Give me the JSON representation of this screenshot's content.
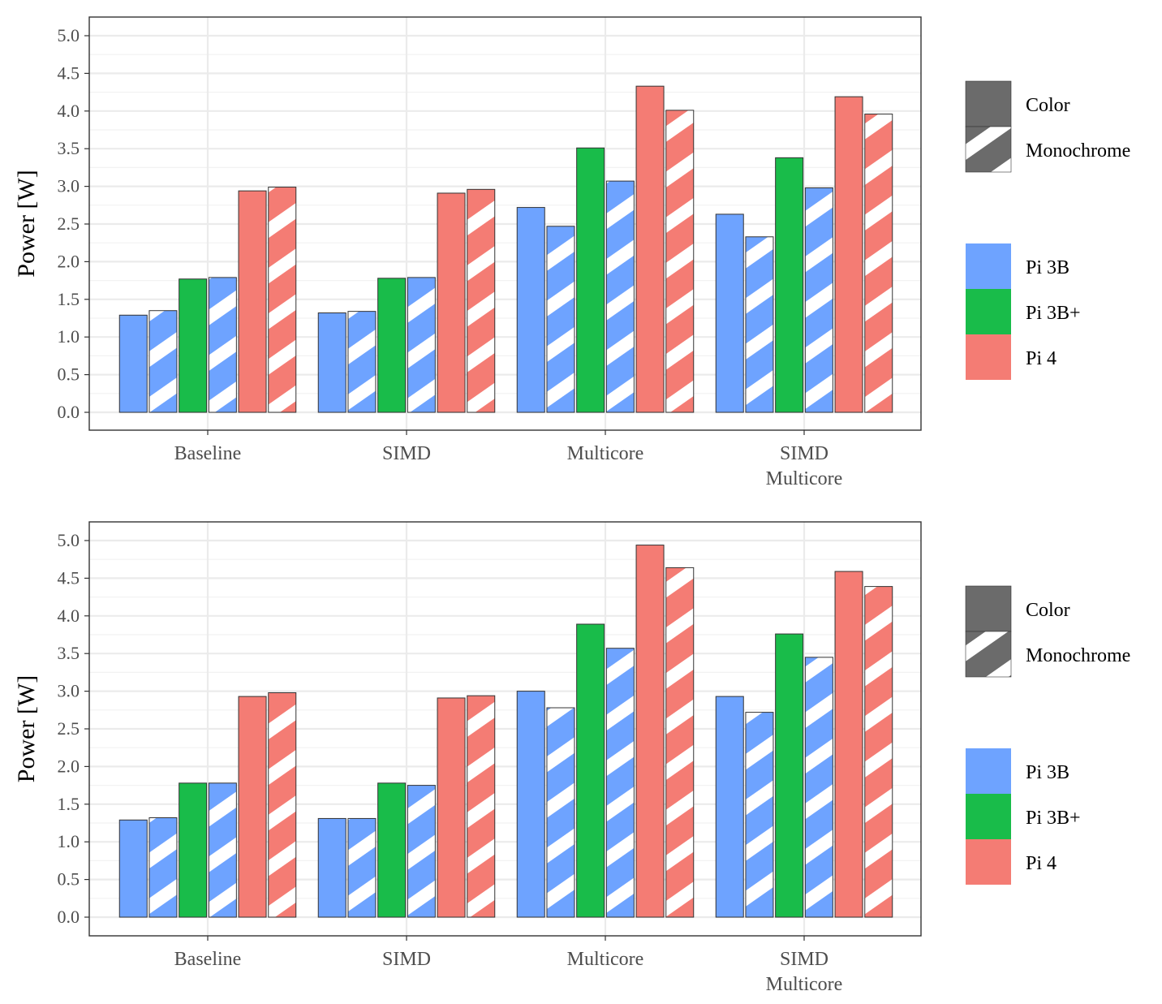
{
  "chart_data": [
    {
      "type": "bar",
      "ylabel": "Power [W]",
      "ylim": [
        0,
        5.0
      ],
      "yticks": [
        "0.0",
        "0.5",
        "1.0",
        "1.5",
        "2.0",
        "2.5",
        "3.0",
        "3.5",
        "4.0",
        "4.5",
        "5.0"
      ],
      "grid": true,
      "categories": [
        [
          "Baseline"
        ],
        [
          "SIMD"
        ],
        [
          "Multicore"
        ],
        [
          "SIMD",
          "Multicore"
        ]
      ],
      "series": [
        {
          "name": "Pi 3B Color",
          "device": "Pi 3B",
          "mode": "Color",
          "values": [
            1.29,
            1.32,
            2.72,
            2.63
          ]
        },
        {
          "name": "Pi 3B Monochrome",
          "device": "Pi 3B",
          "mode": "Monochrome",
          "values": [
            1.35,
            1.34,
            2.47,
            2.33
          ]
        },
        {
          "name": "Pi 3B+ Color",
          "device": "Pi 3B+",
          "mode": "Color",
          "values": [
            1.77,
            1.78,
            3.51,
            3.38
          ]
        },
        {
          "name": "Pi 3B+ Monochrome",
          "device": "Pi 3B+",
          "mode": "Monochrome",
          "values": [
            1.79,
            1.79,
            3.07,
            2.98
          ]
        },
        {
          "name": "Pi 4 Color",
          "device": "Pi 4",
          "mode": "Color",
          "values": [
            2.94,
            2.91,
            4.33,
            4.19
          ]
        },
        {
          "name": "Pi 4 Monochrome",
          "device": "Pi 4",
          "mode": "Monochrome",
          "values": [
            2.99,
            2.96,
            4.01,
            3.96
          ]
        }
      ],
      "legend_mode": [
        "Color",
        "Monochrome"
      ],
      "legend_device": [
        "Pi 3B",
        "Pi 3B+",
        "Pi 4"
      ],
      "legend_position": "right"
    },
    {
      "type": "bar",
      "ylabel": "Power [W]",
      "ylim": [
        0,
        5.0
      ],
      "yticks": [
        "0.0",
        "0.5",
        "1.0",
        "1.5",
        "2.0",
        "2.5",
        "3.0",
        "3.5",
        "4.0",
        "4.5",
        "5.0"
      ],
      "grid": true,
      "categories": [
        [
          "Baseline"
        ],
        [
          "SIMD"
        ],
        [
          "Multicore"
        ],
        [
          "SIMD",
          "Multicore"
        ]
      ],
      "series": [
        {
          "name": "Pi 3B Color",
          "device": "Pi 3B",
          "mode": "Color",
          "values": [
            1.29,
            1.31,
            3.0,
            2.93
          ]
        },
        {
          "name": "Pi 3B Monochrome",
          "device": "Pi 3B",
          "mode": "Monochrome",
          "values": [
            1.32,
            1.31,
            2.78,
            2.72
          ]
        },
        {
          "name": "Pi 3B+ Color",
          "device": "Pi 3B+",
          "mode": "Color",
          "values": [
            1.78,
            1.78,
            3.89,
            3.76
          ]
        },
        {
          "name": "Pi 3B+ Monochrome",
          "device": "Pi 3B+",
          "mode": "Monochrome",
          "values": [
            1.78,
            1.75,
            3.57,
            3.45
          ]
        },
        {
          "name": "Pi 4 Color",
          "device": "Pi 4",
          "mode": "Color",
          "values": [
            2.93,
            2.91,
            4.94,
            4.59
          ]
        },
        {
          "name": "Pi 4 Monochrome",
          "device": "Pi 4",
          "mode": "Monochrome",
          "values": [
            2.98,
            2.94,
            4.64,
            4.39
          ]
        }
      ],
      "legend_mode": [
        "Color",
        "Monochrome"
      ],
      "legend_device": [
        "Pi 3B",
        "Pi 3B+",
        "Pi 4"
      ],
      "legend_position": "right"
    }
  ],
  "colors": {
    "Pi 3B": "#6ea3ff",
    "Pi 3B+": "#19bc4a",
    "Pi 4": "#f47c74",
    "legend_grey": "#6b6b6b",
    "grid": "#ebebeb",
    "grid_minor": "#f2f2f2",
    "panel_border": "#333333"
  }
}
